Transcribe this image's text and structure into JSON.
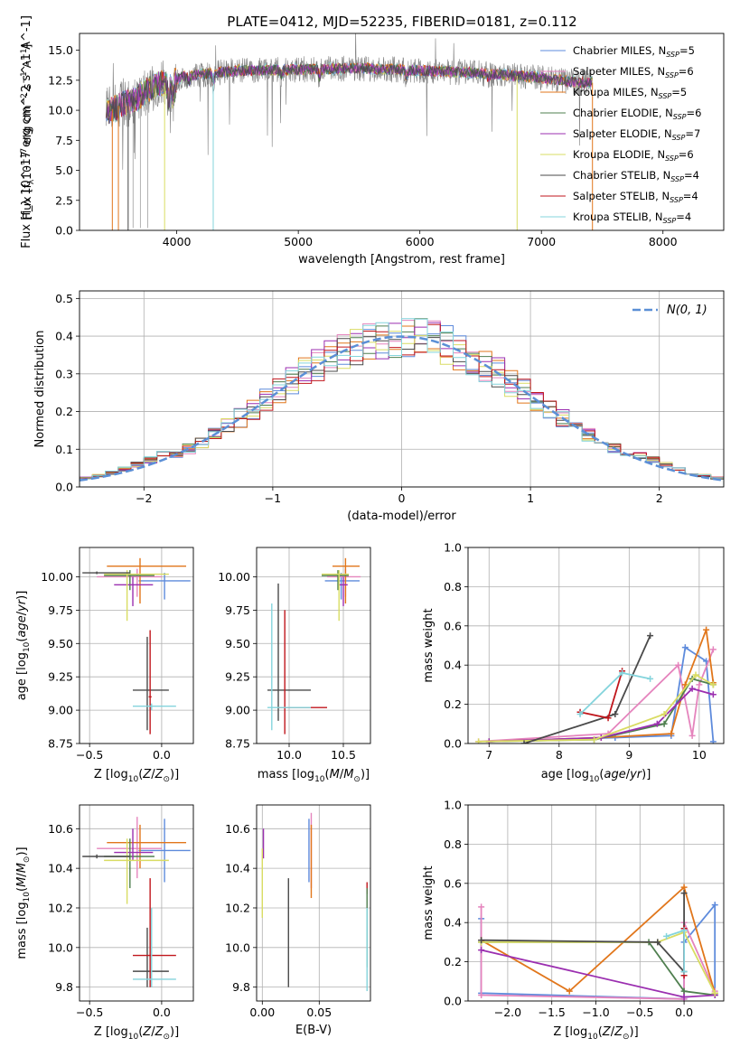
{
  "figure": {
    "title": "PLATE=0412, MJD=52235, FIBERID=0181, z=0.112",
    "colors": {
      "Chabrier MILES": "#5e8bdc",
      "Salpeter MILES": "#e584bd",
      "Kroupa MILES": "#e1761b",
      "Chabrier ELODIE": "#4f7f4f",
      "Salpeter ELODIE": "#9b2fb0",
      "Kroupa ELODIE": "#d9dc63",
      "Chabrier STELIB": "#4a4a4a",
      "Salpeter STELIB": "#c0161c",
      "Kroupa STELIB": "#84d4dc",
      "normal": "#5b8fd6",
      "spectrum_data": "#808080"
    }
  },
  "chart_data": [
    {
      "type": "line",
      "id": "spectrum",
      "xlabel": "wavelength [Angstrom, rest frame]",
      "ylabel": "Flux [f_λ 10^-17 erg cm^-2 s^-1 A^-1]",
      "xlim": [
        3200,
        8500
      ],
      "ylim": [
        0,
        16.4
      ],
      "xticks": [
        4000,
        5000,
        6000,
        7000,
        8000
      ],
      "yticks": [
        "0.0",
        "2.5",
        "5.0",
        "7.5",
        "10.0",
        "12.5",
        "15.0"
      ],
      "legend_position": "right",
      "legend": [
        {
          "label": "Chabrier MILES",
          "nssp": "5"
        },
        {
          "label": "Salpeter MILES",
          "nssp": "6"
        },
        {
          "label": "Kroupa MILES",
          "nssp": "5"
        },
        {
          "label": "Chabrier ELODIE",
          "nssp": "6"
        },
        {
          "label": "Salpeter ELODIE",
          "nssp": "7"
        },
        {
          "label": "Kroupa ELODIE",
          "nssp": "6"
        },
        {
          "label": "Chabrier STELIB",
          "nssp": "4"
        },
        {
          "label": "Salpeter STELIB",
          "nssp": "4"
        },
        {
          "label": "Kroupa STELIB",
          "nssp": "4"
        }
      ],
      "continuum": [
        [
          3420,
          9.8
        ],
        [
          3560,
          10.6
        ],
        [
          3650,
          10.8
        ],
        [
          3750,
          11.6
        ],
        [
          3850,
          12.2
        ],
        [
          3950,
          12.4
        ],
        [
          4050,
          12.8
        ],
        [
          4200,
          13.0
        ],
        [
          4500,
          13.3
        ],
        [
          5000,
          13.4
        ],
        [
          5500,
          13.5
        ],
        [
          6000,
          13.3
        ],
        [
          6500,
          13.1
        ],
        [
          7000,
          12.7
        ],
        [
          7300,
          12.3
        ]
      ],
      "dropouts": [
        {
          "x": 3470,
          "series": "Kroupa MILES"
        },
        {
          "x": 3520,
          "series": "Kroupa MILES"
        },
        {
          "x": 3600,
          "series": "Chabrier STELIB"
        },
        {
          "x": 3900,
          "series": "Kroupa ELODIE"
        },
        {
          "x": 4300,
          "series": "Kroupa STELIB"
        },
        {
          "x": 6800,
          "series": "Kroupa ELODIE"
        },
        {
          "x": 7420,
          "series": "Kroupa MILES"
        }
      ]
    },
    {
      "type": "bar",
      "id": "residuals",
      "xlabel": "(data-model)/error",
      "ylabel": "Normed distribution",
      "xlim": [
        -2.5,
        2.5
      ],
      "ylim": [
        0,
        0.52
      ],
      "xticks": [
        "−2",
        "−1",
        "0",
        "1",
        "2"
      ],
      "yticks": [
        "0.0",
        "0.1",
        "0.2",
        "0.3",
        "0.4",
        "0.5"
      ],
      "grid": true,
      "bin_width": 0.1,
      "bin_start": -2.5,
      "reference_curve": {
        "label": "N(0,1)",
        "mean": 0,
        "sigma": 1
      },
      "legend_position": "top-right"
    },
    {
      "type": "scatter",
      "id": "age_vs_Z",
      "xlabel": "Z [log10(Z/Z☉)]",
      "ylabel": "age  [log10(age/yr)]",
      "xlim": [
        -0.57,
        0.22
      ],
      "ylim": [
        8.75,
        10.22
      ],
      "xticks": [
        "−0.5",
        "0.0"
      ],
      "yticks": [
        "8.75",
        "9.00",
        "9.25",
        "9.50",
        "9.75",
        "10.00"
      ],
      "grid": true,
      "points": [
        {
          "series": "Chabrier MILES",
          "x": 0.02,
          "y": 9.97,
          "xe": [
            -0.16,
            0.2
          ],
          "ye": [
            9.83,
            10.03
          ]
        },
        {
          "series": "Salpeter MILES",
          "x": -0.17,
          "y": 10.0,
          "xe": [
            -0.45,
            0.0
          ],
          "ye": [
            9.85,
            10.06
          ]
        },
        {
          "series": "Kroupa MILES",
          "x": -0.15,
          "y": 10.08,
          "xe": [
            -0.38,
            0.17
          ],
          "ye": [
            9.8,
            10.14
          ]
        },
        {
          "series": "Chabrier ELODIE",
          "x": -0.22,
          "y": 10.01,
          "xe": [
            -0.4,
            -0.05
          ],
          "ye": [
            9.9,
            10.05
          ]
        },
        {
          "series": "Salpeter ELODIE",
          "x": -0.2,
          "y": 9.94,
          "xe": [
            -0.33,
            -0.06
          ],
          "ye": [
            9.78,
            10.0
          ]
        },
        {
          "series": "Kroupa ELODIE",
          "x": -0.24,
          "y": 10.02,
          "xe": [
            -0.4,
            0.05
          ],
          "ye": [
            9.67,
            10.05
          ]
        },
        {
          "series": "Chabrier STELIB",
          "x": -0.1,
          "y": 9.15,
          "xe": [
            -0.2,
            0.05
          ],
          "ye": [
            8.85,
            9.55
          ]
        },
        {
          "series": "Salpeter STELIB",
          "x": -0.08,
          "y": 9.1,
          "xe": [
            -0.09,
            -0.07
          ],
          "ye": [
            8.82,
            9.6
          ]
        },
        {
          "series": "Kroupa STELIB",
          "x": -0.07,
          "y": 9.03,
          "xe": [
            -0.2,
            0.1
          ],
          "ye": [
            9.0,
            9.05
          ]
        },
        {
          "series": "Chabrier STELIB",
          "x": -0.45,
          "y": 10.03,
          "xe": [
            -0.55,
            -0.22
          ],
          "ye": [
            10.02,
            10.04
          ]
        }
      ]
    },
    {
      "type": "scatter",
      "id": "age_vs_mass",
      "xlabel": "mass [log10(M/M☉)]",
      "ylabel": "",
      "xlim": [
        9.7,
        10.75
      ],
      "ylim": [
        8.75,
        10.22
      ],
      "xticks": [
        "10.0",
        "10.5"
      ],
      "yticks": [
        "8.75",
        "9.00",
        "9.25",
        "9.50",
        "9.75",
        "10.00"
      ],
      "grid": true,
      "points": [
        {
          "series": "Chabrier MILES",
          "x": 10.48,
          "y": 9.97,
          "xe": [
            10.33,
            10.65
          ],
          "ye": [
            9.83,
            10.03
          ]
        },
        {
          "series": "Salpeter MILES",
          "x": 10.52,
          "y": 10.0,
          "xe": [
            10.35,
            10.66
          ],
          "ye": [
            9.85,
            10.06
          ]
        },
        {
          "series": "Kroupa MILES",
          "x": 10.52,
          "y": 10.08,
          "xe": [
            10.4,
            10.65
          ],
          "ye": [
            9.8,
            10.14
          ]
        },
        {
          "series": "Chabrier ELODIE",
          "x": 10.45,
          "y": 10.01,
          "xe": [
            10.3,
            10.55
          ],
          "ye": [
            9.9,
            10.05
          ]
        },
        {
          "series": "Salpeter ELODIE",
          "x": 10.5,
          "y": 9.94,
          "xe": [
            10.46,
            10.54
          ],
          "ye": [
            9.78,
            10.0
          ]
        },
        {
          "series": "Kroupa ELODIE",
          "x": 10.46,
          "y": 10.02,
          "xe": [
            10.3,
            10.55
          ],
          "ye": [
            9.67,
            10.05
          ]
        },
        {
          "series": "Chabrier STELIB",
          "x": 9.9,
          "y": 9.15,
          "xe": [
            9.8,
            10.2
          ],
          "ye": [
            8.92,
            9.95
          ]
        },
        {
          "series": "Salpeter STELIB",
          "x": 9.96,
          "y": 9.02,
          "xe": [
            9.9,
            10.35
          ],
          "ye": [
            8.82,
            9.75
          ]
        },
        {
          "series": "Kroupa STELIB",
          "x": 9.84,
          "y": 9.02,
          "xe": [
            9.8,
            10.2
          ],
          "ye": [
            8.85,
            9.8
          ]
        }
      ]
    },
    {
      "type": "line",
      "id": "massweight_vs_age",
      "xlabel": "age  [log10(age/yr)]",
      "ylabel": "mass weight",
      "xlim": [
        6.7,
        10.35
      ],
      "ylim": [
        0,
        1
      ],
      "xticks": [
        "7",
        "8",
        "9",
        "10"
      ],
      "yticks": [
        "0.0",
        "0.2",
        "0.4",
        "0.6",
        "0.8",
        "1.0"
      ],
      "grid": true,
      "series": [
        {
          "name": "Chabrier MILES",
          "x": [
            7.0,
            8.8,
            9.6,
            9.8,
            10.1,
            10.2
          ],
          "y": [
            0.01,
            0.03,
            0.04,
            0.49,
            0.42,
            0.01
          ]
        },
        {
          "name": "Salpeter MILES",
          "x": [
            6.85,
            8.7,
            9.7,
            9.9,
            10.0,
            10.2
          ],
          "y": [
            0.01,
            0.05,
            0.4,
            0.04,
            0.3,
            0.48
          ]
        },
        {
          "name": "Kroupa MILES",
          "x": [
            7.0,
            8.6,
            9.6,
            9.8,
            10.1,
            10.2
          ],
          "y": [
            0.01,
            0.03,
            0.05,
            0.3,
            0.58,
            0.31
          ]
        },
        {
          "name": "Chabrier ELODIE",
          "x": [
            7.0,
            8.5,
            9.5,
            9.9,
            10.2
          ],
          "y": [
            0.01,
            0.02,
            0.1,
            0.33,
            0.3
          ]
        },
        {
          "name": "Salpeter ELODIE",
          "x": [
            7.0,
            8.6,
            9.4,
            9.9,
            10.2
          ],
          "y": [
            0.01,
            0.03,
            0.1,
            0.28,
            0.25
          ]
        },
        {
          "name": "Kroupa ELODIE",
          "x": [
            6.85,
            8.5,
            9.5,
            9.95,
            10.2
          ],
          "y": [
            0.01,
            0.02,
            0.15,
            0.35,
            0.3
          ]
        },
        {
          "name": "Chabrier STELIB",
          "x": [
            7.5,
            8.8,
            9.3
          ],
          "y": [
            0.0,
            0.15,
            0.55
          ]
        },
        {
          "name": "Salpeter STELIB",
          "x": [
            8.3,
            8.7,
            8.9
          ],
          "y": [
            0.16,
            0.13,
            0.37
          ]
        },
        {
          "name": "Kroupa STELIB",
          "x": [
            8.3,
            8.9,
            9.3
          ],
          "y": [
            0.15,
            0.36,
            0.33
          ]
        }
      ]
    },
    {
      "type": "scatter",
      "id": "mass_vs_Z",
      "xlabel": "Z [log10(Z/Z☉)]",
      "ylabel": "mass [log10(M/M☉)]",
      "xlim": [
        -0.57,
        0.22
      ],
      "ylim": [
        9.73,
        10.72
      ],
      "xticks": [
        "−0.5",
        "0.0"
      ],
      "yticks": [
        "9.8",
        "10.0",
        "10.2",
        "10.4",
        "10.6"
      ],
      "grid": true,
      "points": [
        {
          "series": "Chabrier MILES",
          "x": 0.02,
          "y": 10.49,
          "xe": [
            -0.16,
            0.2
          ],
          "ye": [
            10.33,
            10.65
          ]
        },
        {
          "series": "Salpeter MILES",
          "x": -0.17,
          "y": 10.5,
          "xe": [
            -0.45,
            0.0
          ],
          "ye": [
            10.35,
            10.66
          ]
        },
        {
          "series": "Kroupa MILES",
          "x": -0.15,
          "y": 10.53,
          "xe": [
            -0.38,
            0.17
          ],
          "ye": [
            10.4,
            10.62
          ]
        },
        {
          "series": "Chabrier ELODIE",
          "x": -0.22,
          "y": 10.46,
          "xe": [
            -0.4,
            -0.05
          ],
          "ye": [
            10.3,
            10.55
          ]
        },
        {
          "series": "Salpeter ELODIE",
          "x": -0.2,
          "y": 10.48,
          "xe": [
            -0.33,
            -0.06
          ],
          "ye": [
            10.44,
            10.6
          ]
        },
        {
          "series": "Kroupa ELODIE",
          "x": -0.24,
          "y": 10.44,
          "xe": [
            -0.4,
            0.05
          ],
          "ye": [
            10.22,
            10.55
          ]
        },
        {
          "series": "Chabrier STELIB",
          "x": -0.1,
          "y": 9.88,
          "xe": [
            -0.2,
            0.05
          ],
          "ye": [
            9.8,
            10.1
          ]
        },
        {
          "series": "Salpeter STELIB",
          "x": -0.08,
          "y": 9.96,
          "xe": [
            -0.2,
            0.1
          ],
          "ye": [
            9.8,
            10.35
          ]
        },
        {
          "series": "Kroupa STELIB",
          "x": -0.07,
          "y": 9.84,
          "xe": [
            -0.2,
            0.1
          ],
          "ye": [
            9.8,
            10.2
          ]
        },
        {
          "series": "Chabrier STELIB",
          "x": -0.45,
          "y": 10.46,
          "xe": [
            -0.55,
            -0.22
          ],
          "ye": [
            10.45,
            10.47
          ]
        }
      ]
    },
    {
      "type": "scatter",
      "id": "mass_vs_EBV",
      "xlabel": "E(B-V)",
      "ylabel": "",
      "xlim": [
        -0.005,
        0.095
      ],
      "ylim": [
        9.73,
        10.72
      ],
      "xticks": [
        "0.00",
        "0.05"
      ],
      "yticks": [
        "9.8",
        "10.0",
        "10.2",
        "10.4",
        "10.6"
      ],
      "grid": true,
      "points": [
        {
          "series": "Salpeter ELODIE",
          "x": 0.001,
          "y": 10.55,
          "ye": [
            10.45,
            10.6
          ]
        },
        {
          "series": "Kroupa ELODIE",
          "x": 0.0,
          "y": 10.3,
          "ye": [
            10.15,
            10.5
          ]
        },
        {
          "series": "Chabrier STELIB",
          "x": 0.023,
          "y": 10.1,
          "ye": [
            9.8,
            10.35
          ]
        },
        {
          "series": "Chabrier MILES",
          "x": 0.041,
          "y": 10.4,
          "ye": [
            10.33,
            10.65
          ]
        },
        {
          "series": "Salpeter MILES",
          "x": 0.043,
          "y": 10.45,
          "ye": [
            10.3,
            10.68
          ]
        },
        {
          "series": "Kroupa MILES",
          "x": 0.043,
          "y": 10.4,
          "ye": [
            10.25,
            10.62
          ]
        },
        {
          "series": "Salpeter STELIB",
          "x": 0.092,
          "y": 10.3,
          "ye": [
            10.27,
            10.33
          ]
        },
        {
          "series": "Chabrier ELODIE",
          "x": 0.092,
          "y": 10.1,
          "ye": [
            9.9,
            10.3
          ]
        },
        {
          "series": "Kroupa STELIB",
          "x": 0.092,
          "y": 9.95,
          "ye": [
            9.78,
            10.2
          ]
        }
      ]
    },
    {
      "type": "line",
      "id": "massweight_vs_Z",
      "xlabel": "Z [log10(Z/Z☉)]",
      "ylabel": "mass weight",
      "xlim": [
        -2.45,
        0.45
      ],
      "ylim": [
        0,
        1
      ],
      "xticks": [
        "−2.0",
        "−1.5",
        "−1.0",
        "−0.5",
        "0.0"
      ],
      "yticks": [
        "0.0",
        "0.2",
        "0.4",
        "0.6",
        "0.8",
        "1.0"
      ],
      "grid": true,
      "series": [
        {
          "name": "Chabrier MILES",
          "x": [
            -2.3,
            -2.3,
            0.0,
            0.0,
            0.35,
            0.35
          ],
          "y": [
            0.42,
            0.04,
            0.01,
            0.3,
            0.49,
            0.04
          ]
        },
        {
          "name": "Salpeter MILES",
          "x": [
            -2.3,
            -2.3,
            0.0,
            0.0,
            0.35
          ],
          "y": [
            0.48,
            0.03,
            0.01,
            0.4,
            0.05
          ]
        },
        {
          "name": "Kroupa MILES",
          "x": [
            -2.3,
            -1.3,
            0.0,
            0.35
          ],
          "y": [
            0.31,
            0.05,
            0.58,
            0.04
          ]
        },
        {
          "name": "Chabrier ELODIE",
          "x": [
            -2.3,
            -0.4,
            0.0,
            0.35
          ],
          "y": [
            0.3,
            0.3,
            0.05,
            0.03
          ]
        },
        {
          "name": "Salpeter ELODIE",
          "x": [
            -2.3,
            0.0,
            0.35
          ],
          "y": [
            0.26,
            0.02,
            0.03
          ]
        },
        {
          "name": "Kroupa ELODIE",
          "x": [
            -2.3,
            -0.3,
            0.0,
            0.35
          ],
          "y": [
            0.3,
            0.3,
            0.35,
            0.04
          ]
        },
        {
          "name": "Chabrier STELIB",
          "x": [
            -2.3,
            -0.3,
            0.0,
            0.0
          ],
          "y": [
            0.31,
            0.3,
            0.15,
            0.55
          ]
        },
        {
          "name": "Salpeter STELIB",
          "x": [
            0.0,
            0.0
          ],
          "y": [
            0.13,
            0.37
          ]
        },
        {
          "name": "Kroupa STELIB",
          "x": [
            -0.2,
            0.0,
            0.0
          ],
          "y": [
            0.33,
            0.36,
            0.15
          ]
        }
      ]
    }
  ]
}
